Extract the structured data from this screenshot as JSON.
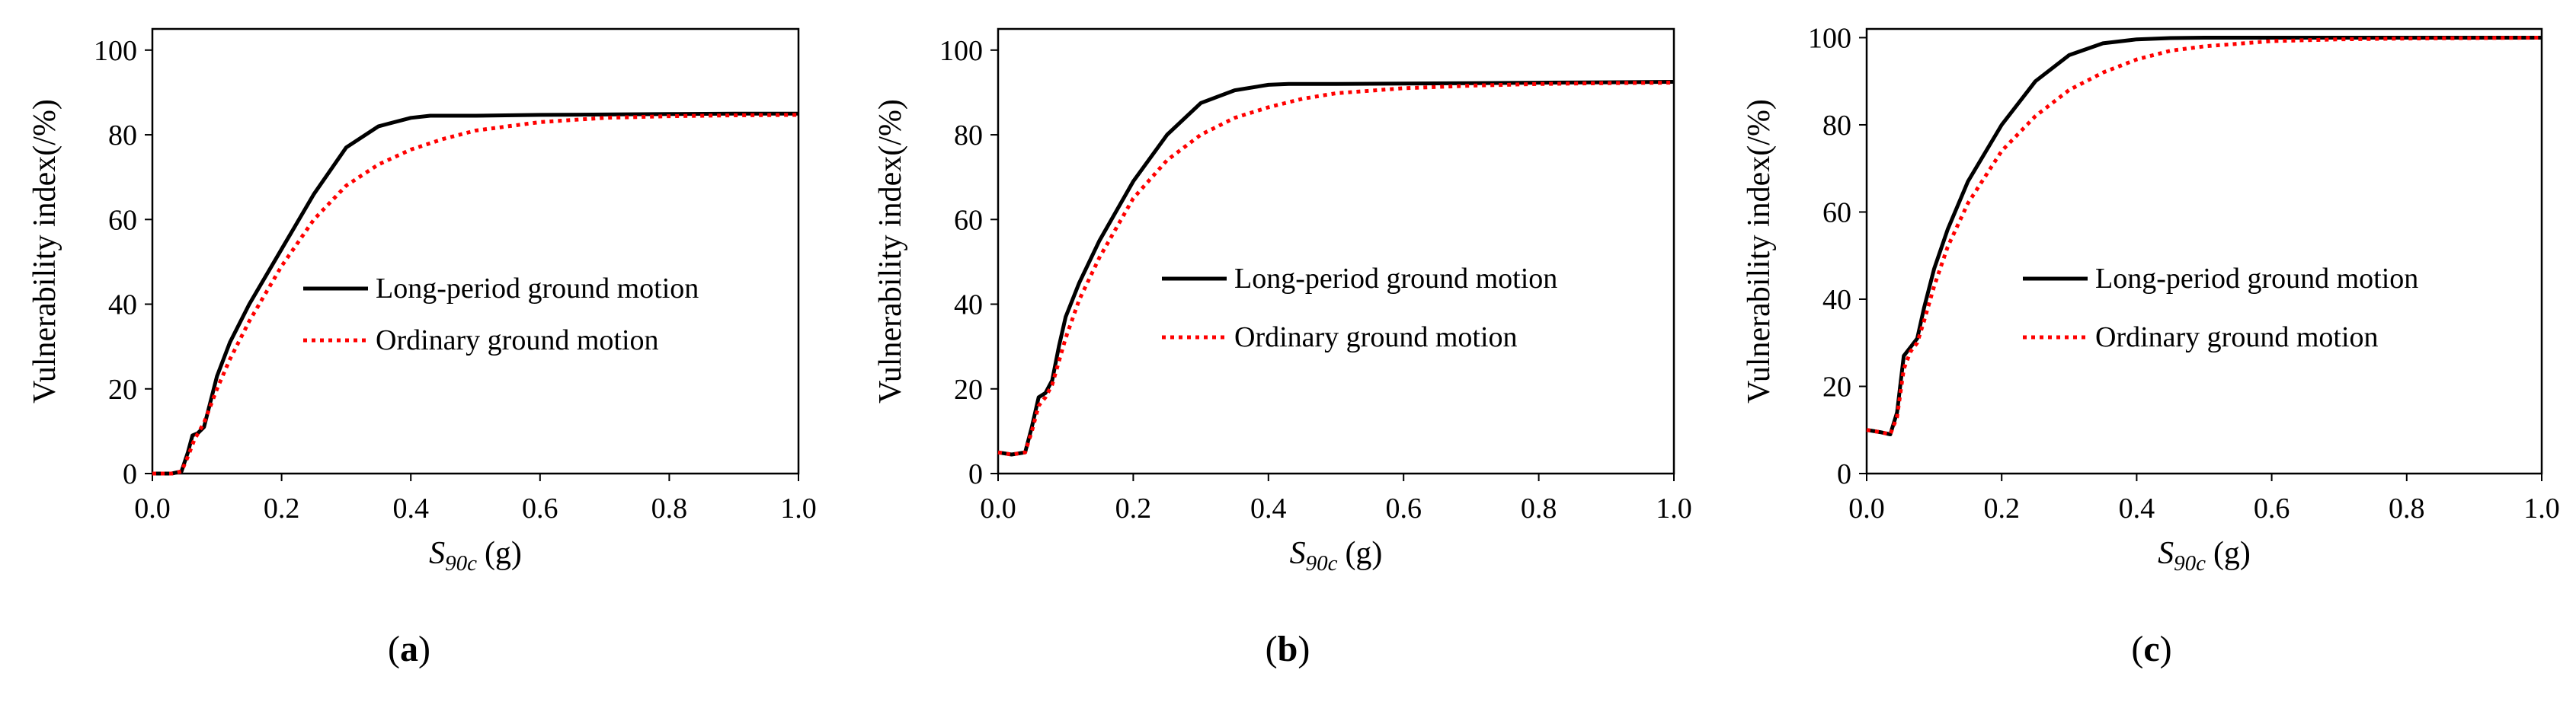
{
  "colors": {
    "long_period": "#000000",
    "ordinary": "#ff0000",
    "frame": "#000000"
  },
  "chart_data": [
    {
      "type": "line",
      "panel": "(a)",
      "caption_letter": "a",
      "xlabel_main": "S",
      "xlabel_sub": "90c",
      "xlabel_unit": "(g)",
      "ylabel": "Vulnerability  index(/%)",
      "xlim": [
        0.0,
        1.0
      ],
      "ylim": [
        0,
        105
      ],
      "x_ticks": [
        "0.0",
        "0.2",
        "0.4",
        "0.6",
        "0.8",
        "1.0"
      ],
      "y_ticks": [
        "0",
        "20",
        "40",
        "60",
        "80",
        "100"
      ],
      "grid": false,
      "legend_position": "center-right",
      "series": [
        {
          "name": "Long-period ground motion",
          "style": "solid",
          "x": [
            0.0,
            0.03,
            0.045,
            0.055,
            0.062,
            0.07,
            0.08,
            0.09,
            0.1,
            0.12,
            0.15,
            0.2,
            0.25,
            0.3,
            0.35,
            0.4,
            0.43,
            0.45,
            0.5,
            0.6,
            0.7,
            0.8,
            0.9,
            1.0
          ],
          "y": [
            0,
            0,
            0.5,
            5,
            9,
            9.5,
            11,
            17,
            23,
            31,
            40,
            53,
            66,
            77,
            82,
            84,
            84.5,
            84.5,
            84.5,
            84.7,
            84.8,
            84.9,
            85,
            85
          ]
        },
        {
          "name": "Ordinary ground motion",
          "style": "dotted",
          "x": [
            0.0,
            0.03,
            0.045,
            0.055,
            0.065,
            0.08,
            0.1,
            0.12,
            0.15,
            0.2,
            0.25,
            0.3,
            0.35,
            0.4,
            0.45,
            0.5,
            0.6,
            0.7,
            0.8,
            0.9,
            1.0
          ],
          "y": [
            0,
            0,
            0.5,
            4,
            8,
            12,
            20,
            27,
            36,
            49,
            60,
            68,
            73,
            76.5,
            79,
            81,
            83,
            84,
            84.4,
            84.6,
            84.7
          ]
        }
      ]
    },
    {
      "type": "line",
      "panel": "(b)",
      "caption_letter": "b",
      "xlabel_main": "S",
      "xlabel_sub": "90c",
      "xlabel_unit": "(g)",
      "ylabel": "Vulnerability  index(/%)",
      "xlim": [
        0.0,
        1.0
      ],
      "ylim": [
        0,
        105
      ],
      "x_ticks": [
        "0.0",
        "0.2",
        "0.4",
        "0.6",
        "0.8",
        "1.0"
      ],
      "y_ticks": [
        "0",
        "20",
        "40",
        "60",
        "80",
        "100"
      ],
      "grid": false,
      "legend_position": "center-right",
      "series": [
        {
          "name": "Long-period ground motion",
          "style": "solid",
          "x": [
            0.0,
            0.02,
            0.04,
            0.05,
            0.06,
            0.07,
            0.08,
            0.09,
            0.1,
            0.12,
            0.15,
            0.2,
            0.25,
            0.3,
            0.35,
            0.4,
            0.43,
            0.45,
            0.5,
            0.6,
            0.7,
            0.8,
            0.9,
            1.0
          ],
          "y": [
            5,
            4.5,
            5,
            11,
            18,
            19,
            22,
            30,
            37,
            45,
            55,
            69,
            80,
            87.5,
            90.5,
            91.8,
            92,
            92,
            92,
            92.1,
            92.2,
            92.3,
            92.4,
            92.5
          ]
        },
        {
          "name": "Ordinary ground motion",
          "style": "dotted",
          "x": [
            0.0,
            0.02,
            0.04,
            0.05,
            0.06,
            0.07,
            0.08,
            0.1,
            0.12,
            0.15,
            0.2,
            0.25,
            0.3,
            0.35,
            0.4,
            0.45,
            0.5,
            0.6,
            0.7,
            0.8,
            0.9,
            1.0
          ],
          "y": [
            5,
            4.5,
            5,
            10,
            16,
            18,
            21,
            32,
            41,
            51,
            65,
            74,
            80,
            84,
            86.5,
            88.5,
            89.8,
            91,
            91.6,
            92,
            92.2,
            92.3
          ]
        }
      ]
    },
    {
      "type": "line",
      "panel": "(c)",
      "caption_letter": "c",
      "xlabel_main": "S",
      "xlabel_sub": "90c",
      "xlabel_unit": "(g)",
      "ylabel": "Vulnerability  index(/%)",
      "xlim": [
        0.0,
        1.0
      ],
      "ylim": [
        0,
        102
      ],
      "x_ticks": [
        "0.0",
        "0.2",
        "0.4",
        "0.6",
        "0.8",
        "1.0"
      ],
      "y_ticks": [
        "0",
        "20",
        "40",
        "60",
        "80",
        "100"
      ],
      "grid": false,
      "legend_position": "center-right",
      "series": [
        {
          "name": "Long-period ground motion",
          "style": "solid",
          "x": [
            0.0,
            0.02,
            0.035,
            0.045,
            0.055,
            0.065,
            0.075,
            0.085,
            0.1,
            0.12,
            0.15,
            0.2,
            0.25,
            0.3,
            0.35,
            0.4,
            0.45,
            0.5,
            0.6,
            0.8,
            1.0
          ],
          "y": [
            10,
            9.5,
            9,
            14,
            27,
            29,
            31,
            38,
            47,
            56,
            67,
            80,
            90,
            96,
            98.7,
            99.6,
            99.9,
            100,
            100,
            100,
            100
          ]
        },
        {
          "name": "Ordinary ground motion",
          "style": "dotted",
          "x": [
            0.0,
            0.02,
            0.035,
            0.045,
            0.055,
            0.065,
            0.075,
            0.085,
            0.1,
            0.12,
            0.15,
            0.2,
            0.25,
            0.3,
            0.35,
            0.4,
            0.45,
            0.5,
            0.6,
            0.7,
            0.8,
            1.0
          ],
          "y": [
            10,
            9.5,
            9,
            13,
            24,
            28,
            30,
            35,
            43,
            52,
            62,
            74,
            82,
            88,
            92,
            95,
            97,
            98,
            99.2,
            99.6,
            99.8,
            100
          ]
        }
      ]
    }
  ]
}
